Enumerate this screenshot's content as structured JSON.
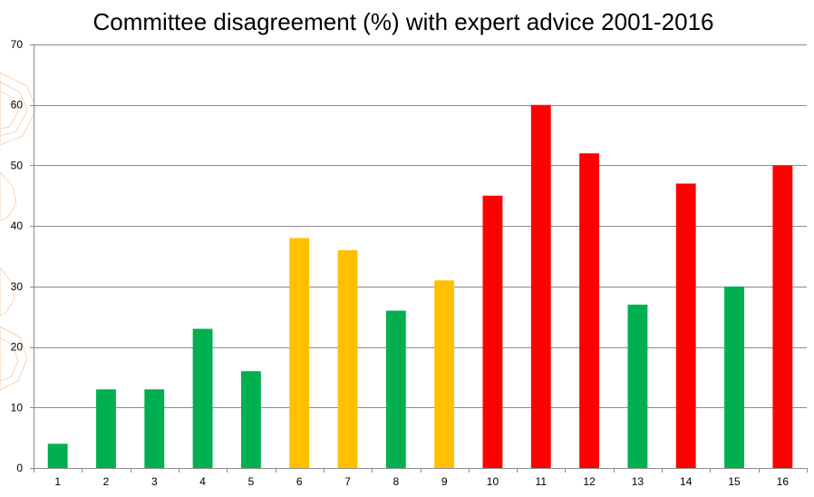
{
  "colors": {
    "green": "#00b050",
    "amber": "#ffc000",
    "red": "#ff0000",
    "grid": "#8c8c8c",
    "watermark": "#f4c9a8"
  },
  "chart_data": {
    "type": "bar",
    "title": "Committee disagreement (%) with expert advice 2001-2016",
    "xlabel": "",
    "ylabel": "",
    "ylim": [
      0,
      70
    ],
    "yticks": [
      0,
      10,
      20,
      30,
      40,
      50,
      60,
      70
    ],
    "grid": true,
    "legend": "none",
    "categories": [
      "1",
      "2",
      "3",
      "4",
      "5",
      "6",
      "7",
      "8",
      "9",
      "10",
      "11",
      "12",
      "13",
      "14",
      "15",
      "16"
    ],
    "values": [
      4,
      13,
      13,
      23,
      16,
      38,
      36,
      26,
      31,
      45,
      60,
      52,
      27,
      47,
      30,
      50
    ],
    "bar_colors": [
      "green",
      "green",
      "green",
      "green",
      "green",
      "amber",
      "amber",
      "green",
      "amber",
      "red",
      "red",
      "red",
      "green",
      "red",
      "green",
      "red"
    ]
  }
}
